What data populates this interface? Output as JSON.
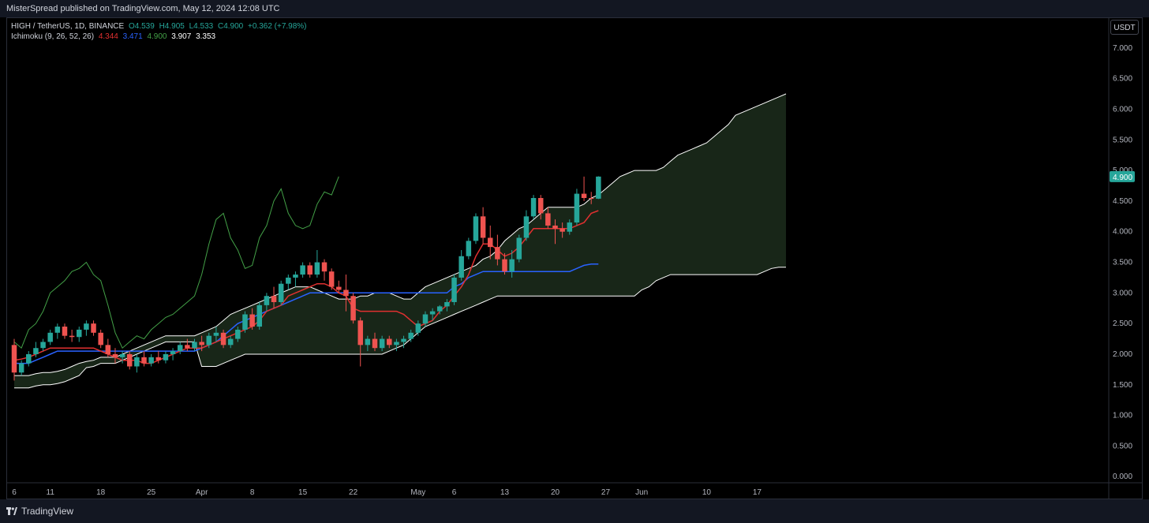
{
  "header": {
    "published": "MisterSpread published on TradingView.com, May 12, 2024 12:08 UTC"
  },
  "legend": {
    "symbol": "HIGH / TetherUS, 1D, BINANCE",
    "open": "O4.539",
    "high": "H4.905",
    "low": "L4.533",
    "close": "C4.900",
    "change": "+0.362 (+7.98%)",
    "indicator": "Ichimoku (9, 26, 52, 26)",
    "conv": "4.344",
    "base": "3.471",
    "lagging": "4.900",
    "spanA": "3.907",
    "spanB": "3.353"
  },
  "currency_button": "USDT",
  "footer": {
    "brand": "TradingView"
  },
  "colors": {
    "up": "#26a69a",
    "down": "#ef5350",
    "conversion": "#e03030",
    "base": "#2962ff",
    "lagging": "#43a047",
    "span": "#ffffff",
    "cloud_bull": "#1b2a1b",
    "cloud_bear": "#4a1414",
    "price_label": "#26a69a"
  },
  "chart_data": {
    "type": "candlestick",
    "ylim": [
      -0.1,
      7.5
    ],
    "y_ticks": [
      "0.000",
      "0.500",
      "1.000",
      "1.500",
      "2.000",
      "2.500",
      "3.000",
      "3.500",
      "4.000",
      "4.500",
      "5.000",
      "5.500",
      "6.000",
      "6.500",
      "7.000"
    ],
    "x_ticks": [
      {
        "label": "6",
        "day": 0
      },
      {
        "label": "11",
        "day": 5
      },
      {
        "label": "18",
        "day": 12
      },
      {
        "label": "25",
        "day": 19
      },
      {
        "label": "Apr",
        "day": 26
      },
      {
        "label": "8",
        "day": 33
      },
      {
        "label": "15",
        "day": 40
      },
      {
        "label": "22",
        "day": 47
      },
      {
        "label": "May",
        "day": 56
      },
      {
        "label": "6",
        "day": 61
      },
      {
        "label": "13",
        "day": 68
      },
      {
        "label": "20",
        "day": 75
      },
      {
        "label": "27",
        "day": 82
      },
      {
        "label": "Jun",
        "day": 87
      },
      {
        "label": "10",
        "day": 96
      },
      {
        "label": "17",
        "day": 103
      }
    ],
    "last_price": "4.900",
    "candles": [
      [
        2.15,
        2.25,
        1.57,
        1.7
      ],
      [
        1.7,
        1.9,
        1.65,
        1.85
      ],
      [
        1.85,
        2.05,
        1.8,
        2.0
      ],
      [
        2.0,
        2.2,
        1.95,
        2.1
      ],
      [
        2.1,
        2.25,
        2.05,
        2.2
      ],
      [
        2.2,
        2.4,
        2.15,
        2.35
      ],
      [
        2.35,
        2.5,
        2.25,
        2.45
      ],
      [
        2.45,
        2.5,
        2.25,
        2.3
      ],
      [
        2.3,
        2.4,
        2.2,
        2.28
      ],
      [
        2.28,
        2.45,
        2.2,
        2.4
      ],
      [
        2.4,
        2.55,
        2.3,
        2.5
      ],
      [
        2.5,
        2.55,
        2.3,
        2.35
      ],
      [
        2.35,
        2.4,
        2.1,
        2.15
      ],
      [
        2.15,
        2.25,
        1.95,
        2.0
      ],
      [
        2.0,
        2.1,
        1.85,
        1.95
      ],
      [
        1.95,
        2.05,
        1.85,
        2.0
      ],
      [
        2.0,
        2.05,
        1.75,
        1.8
      ],
      [
        1.8,
        2.0,
        1.7,
        1.95
      ],
      [
        1.95,
        2.05,
        1.8,
        1.85
      ],
      [
        1.85,
        2.0,
        1.8,
        1.95
      ],
      [
        1.95,
        2.05,
        1.85,
        1.9
      ],
      [
        1.9,
        2.05,
        1.85,
        2.0
      ],
      [
        2.0,
        2.1,
        1.9,
        2.05
      ],
      [
        2.05,
        2.2,
        2.0,
        2.15
      ],
      [
        2.15,
        2.25,
        2.05,
        2.1
      ],
      [
        2.1,
        2.25,
        2.05,
        2.2
      ],
      [
        2.2,
        2.3,
        2.05,
        2.15
      ],
      [
        2.15,
        2.35,
        2.1,
        2.3
      ],
      [
        2.3,
        2.45,
        2.2,
        2.35
      ],
      [
        2.35,
        2.4,
        2.1,
        2.15
      ],
      [
        2.15,
        2.3,
        2.1,
        2.25
      ],
      [
        2.25,
        2.45,
        2.2,
        2.4
      ],
      [
        2.4,
        2.7,
        2.35,
        2.65
      ],
      [
        2.65,
        2.75,
        2.4,
        2.45
      ],
      [
        2.45,
        2.85,
        2.4,
        2.8
      ],
      [
        2.8,
        3.0,
        2.7,
        2.95
      ],
      [
        2.95,
        3.1,
        2.75,
        2.85
      ],
      [
        2.85,
        3.2,
        2.8,
        3.15
      ],
      [
        3.15,
        3.3,
        3.05,
        3.25
      ],
      [
        3.25,
        3.35,
        3.1,
        3.3
      ],
      [
        3.3,
        3.5,
        3.25,
        3.45
      ],
      [
        3.45,
        3.5,
        3.25,
        3.3
      ],
      [
        3.3,
        3.7,
        3.25,
        3.5
      ],
      [
        3.5,
        3.55,
        3.2,
        3.35
      ],
      [
        3.35,
        3.4,
        3.05,
        3.1
      ],
      [
        3.1,
        3.2,
        3.0,
        3.05
      ],
      [
        3.05,
        3.3,
        2.7,
        2.95
      ],
      [
        2.95,
        3.0,
        2.5,
        2.55
      ],
      [
        2.55,
        2.6,
        1.8,
        2.15
      ],
      [
        2.15,
        2.3,
        2.05,
        2.25
      ],
      [
        2.25,
        2.35,
        2.05,
        2.1
      ],
      [
        2.1,
        2.3,
        2.05,
        2.25
      ],
      [
        2.25,
        2.3,
        2.1,
        2.15
      ],
      [
        2.15,
        2.25,
        2.05,
        2.2
      ],
      [
        2.2,
        2.3,
        2.1,
        2.25
      ],
      [
        2.25,
        2.4,
        2.2,
        2.35
      ],
      [
        2.35,
        2.55,
        2.3,
        2.5
      ],
      [
        2.5,
        2.7,
        2.45,
        2.65
      ],
      [
        2.65,
        2.75,
        2.55,
        2.7
      ],
      [
        2.7,
        2.8,
        2.65,
        2.78
      ],
      [
        2.78,
        2.9,
        2.7,
        2.85
      ],
      [
        2.85,
        3.3,
        2.8,
        3.25
      ],
      [
        3.25,
        3.7,
        3.2,
        3.6
      ],
      [
        3.6,
        3.9,
        3.55,
        3.85
      ],
      [
        3.85,
        4.3,
        3.8,
        4.25
      ],
      [
        4.25,
        4.4,
        3.8,
        3.9
      ],
      [
        3.9,
        4.1,
        3.55,
        3.75
      ],
      [
        3.75,
        3.95,
        3.45,
        3.55
      ],
      [
        3.55,
        3.65,
        3.3,
        3.35
      ],
      [
        3.35,
        3.7,
        3.25,
        3.55
      ],
      [
        3.55,
        3.95,
        3.5,
        3.9
      ],
      [
        3.9,
        4.35,
        3.85,
        4.25
      ],
      [
        4.25,
        4.6,
        4.2,
        4.55
      ],
      [
        4.55,
        4.6,
        4.2,
        4.3
      ],
      [
        4.3,
        4.4,
        4.05,
        4.1
      ],
      [
        4.1,
        4.2,
        3.8,
        4.05
      ],
      [
        4.05,
        4.15,
        3.9,
        4.0
      ],
      [
        4.0,
        4.2,
        3.95,
        4.15
      ],
      [
        4.15,
        4.7,
        4.1,
        4.62
      ],
      [
        4.62,
        4.9,
        4.5,
        4.55
      ],
      [
        4.55,
        4.65,
        4.45,
        4.539
      ],
      [
        4.539,
        4.905,
        4.533,
        4.9
      ]
    ],
    "series": [
      {
        "name": "Ichimoku conversion",
        "values": [
          1.9,
          1.92,
          1.95,
          2.0,
          2.05,
          2.1,
          2.1,
          2.1,
          2.1,
          2.1,
          2.1,
          2.1,
          2.05,
          2.0,
          1.95,
          1.9,
          1.9,
          1.9,
          1.85,
          1.85,
          1.9,
          1.95,
          2.0,
          2.05,
          2.1,
          2.1,
          2.1,
          2.15,
          2.2,
          2.25,
          2.3,
          2.35,
          2.4,
          2.45,
          2.55,
          2.7,
          2.75,
          2.8,
          2.95,
          3.0,
          3.05,
          3.1,
          3.15,
          3.15,
          3.1,
          3.0,
          2.95,
          2.75,
          2.7,
          2.7,
          2.7,
          2.7,
          2.7,
          2.7,
          2.65,
          2.55,
          2.45,
          2.5,
          2.55,
          2.7,
          2.8,
          2.95,
          3.1,
          3.3,
          3.6,
          3.8,
          3.8,
          3.7,
          3.6,
          3.65,
          3.75,
          3.9,
          4.05,
          4.05,
          4.05,
          4.05,
          4.05,
          4.05,
          4.1,
          4.15,
          4.3,
          4.344
        ]
      },
      {
        "name": "Ichimoku base",
        "values": [
          1.85,
          1.85,
          1.85,
          1.9,
          1.95,
          2.0,
          2.05,
          2.05,
          2.05,
          2.05,
          2.05,
          2.05,
          2.05,
          2.05,
          2.05,
          2.05,
          2.05,
          2.05,
          2.05,
          2.05,
          2.05,
          2.05,
          2.05,
          2.05,
          2.05,
          2.05,
          2.1,
          2.15,
          2.2,
          2.3,
          2.4,
          2.5,
          2.55,
          2.6,
          2.65,
          2.7,
          2.75,
          2.8,
          2.85,
          2.9,
          2.95,
          3.0,
          3.0,
          3.0,
          3.0,
          3.0,
          3.0,
          3.0,
          3.0,
          3.0,
          3.0,
          3.0,
          3.0,
          3.0,
          3.0,
          3.0,
          3.0,
          3.0,
          3.0,
          3.0,
          3.0,
          3.1,
          3.15,
          3.25,
          3.3,
          3.35,
          3.35,
          3.35,
          3.35,
          3.35,
          3.35,
          3.35,
          3.35,
          3.35,
          3.35,
          3.35,
          3.35,
          3.35,
          3.4,
          3.45,
          3.471,
          3.471
        ]
      },
      {
        "name": "Ichimoku lagging",
        "values": [
          2.2,
          2.1,
          2.4,
          2.5,
          2.7,
          3.0,
          3.1,
          3.2,
          3.35,
          3.4,
          3.5,
          3.3,
          3.2,
          2.8,
          2.35,
          2.1,
          2.2,
          2.3,
          2.25,
          2.4,
          2.5,
          2.6,
          2.65,
          2.75,
          2.85,
          2.95,
          3.3,
          3.8,
          4.2,
          4.3,
          3.9,
          3.7,
          3.4,
          3.45,
          3.9,
          4.1,
          4.5,
          4.7,
          4.3,
          4.1,
          4.05,
          4.1,
          4.45,
          4.65,
          4.6,
          4.9
        ]
      },
      {
        "name": "Leading span A",
        "values": [
          1.65,
          1.65,
          1.65,
          1.68,
          1.7,
          1.7,
          1.72,
          1.75,
          1.8,
          1.85,
          1.88,
          1.9,
          1.95,
          1.95,
          1.95,
          2.0,
          2.05,
          2.1,
          2.15,
          2.2,
          2.25,
          2.3,
          2.3,
          2.3,
          2.3,
          2.3,
          2.35,
          2.4,
          2.45,
          2.55,
          2.65,
          2.7,
          2.75,
          2.8,
          2.85,
          2.9,
          2.95,
          3.0,
          3.05,
          3.1,
          3.1,
          3.1,
          3.05,
          3.0,
          2.95,
          2.9,
          2.9,
          2.9,
          2.95,
          2.95,
          3.0,
          3.0,
          3.0,
          2.95,
          2.9,
          2.9,
          3.0,
          3.1,
          3.15,
          3.2,
          3.25,
          3.3,
          3.35,
          3.4,
          3.45,
          3.55,
          3.6,
          3.7,
          3.85,
          3.95,
          4.05,
          4.1,
          4.2,
          4.3,
          4.4,
          4.4,
          4.4,
          4.4,
          4.4,
          4.45,
          4.55,
          4.6,
          4.7,
          4.8,
          4.9,
          4.95,
          5.0,
          5.0,
          5.0,
          5.0,
          5.05,
          5.15,
          5.25,
          5.3,
          5.35,
          5.4,
          5.45,
          5.55,
          5.65,
          5.75,
          5.9,
          5.95,
          6.0,
          6.05,
          6.1,
          6.15,
          6.2,
          6.25
        ]
      }
    ]
  }
}
